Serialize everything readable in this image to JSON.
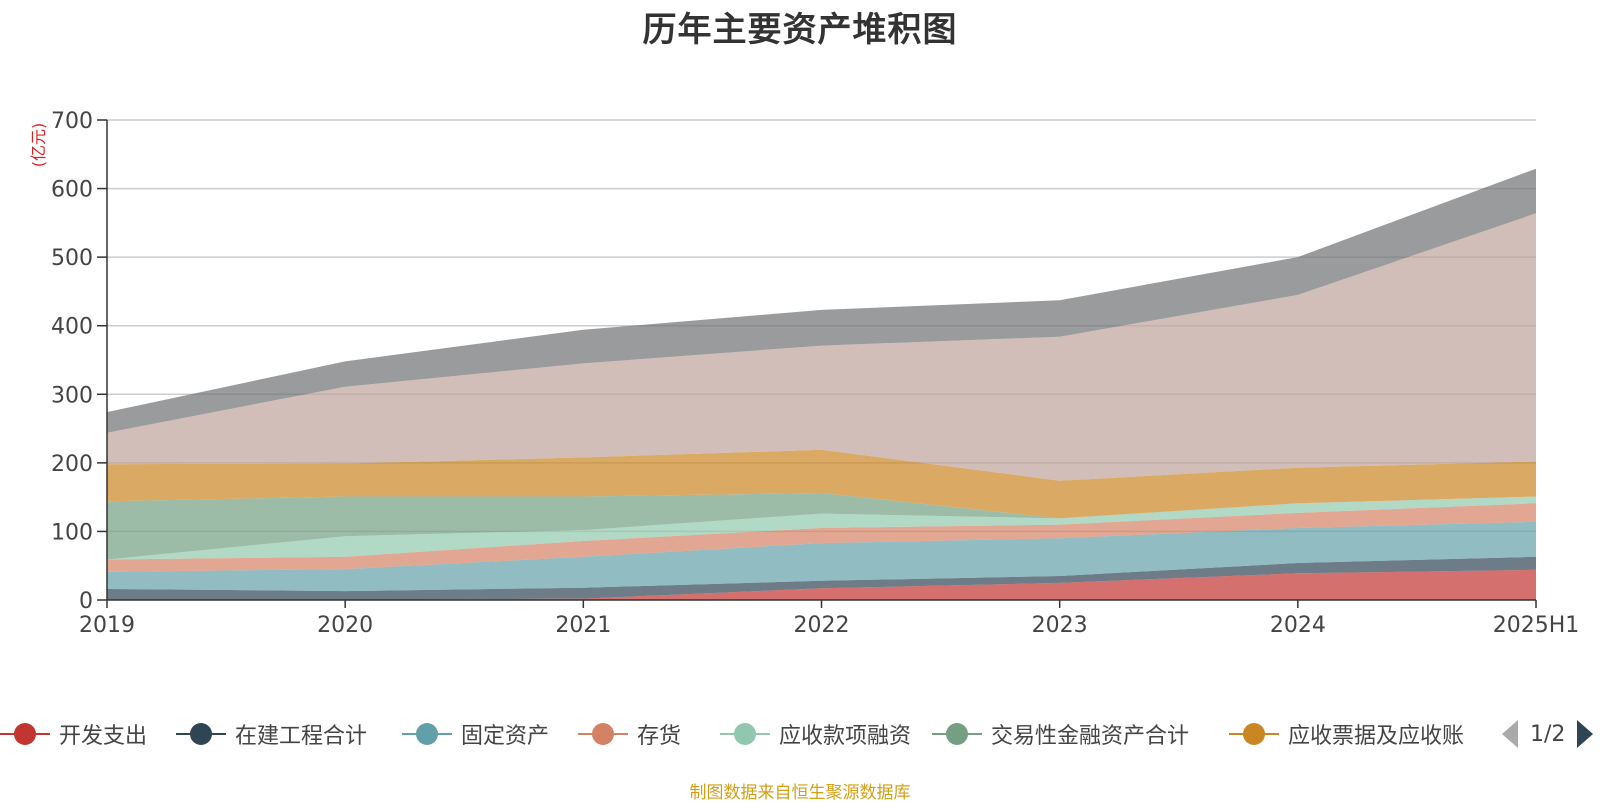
{
  "chart_data": {
    "type": "area",
    "stacked": true,
    "title": "历年主要资产堆积图",
    "ylabel": "(亿元)",
    "xlabel": "",
    "categories": [
      "2019",
      "2020",
      "2021",
      "2022",
      "2023",
      "2024",
      "2025H1"
    ],
    "ylim": [
      0,
      700
    ],
    "yticks": [
      0,
      100,
      200,
      300,
      400,
      500,
      600,
      700
    ],
    "grid": true,
    "legend_position": "bottom",
    "series": [
      {
        "name": "开发支出",
        "color": "#c23531",
        "values": [
          0,
          0,
          2,
          17,
          25,
          39,
          44
        ]
      },
      {
        "name": "在建工程合计",
        "color": "#2f4554",
        "values": [
          16,
          13,
          16,
          11,
          10,
          15,
          19
        ]
      },
      {
        "name": "固定资产",
        "color": "#61a0a8",
        "values": [
          25,
          32,
          45,
          55,
          55,
          51,
          51
        ]
      },
      {
        "name": "存货",
        "color": "#d48265",
        "values": [
          18,
          18,
          23,
          22,
          20,
          22,
          27
        ]
      },
      {
        "name": "应收款项融资",
        "color": "#91c7ae",
        "values": [
          0,
          30,
          16,
          21,
          9,
          14,
          10
        ]
      },
      {
        "name": "交易性金融资产合计",
        "color": "#749f83",
        "values": [
          85,
          58,
          49,
          30,
          0,
          0,
          0
        ]
      },
      {
        "name": "应收票据及应收账",
        "color": "#ca8622",
        "values": [
          54,
          48,
          57,
          63,
          55,
          52,
          51
        ]
      },
      {
        "values": [
          46,
          112,
          137,
          152,
          210,
          252,
          362
        ],
        "color": "#bda29a"
      },
      {
        "values": [
          30,
          37,
          49,
          52,
          53,
          55,
          65
        ],
        "color": "#6e7074"
      }
    ]
  },
  "legend": {
    "items": [
      {
        "name": "开发支出",
        "color": "#c23531"
      },
      {
        "name": "在建工程合计",
        "color": "#2f4554"
      },
      {
        "name": "固定资产",
        "color": "#61a0a8"
      },
      {
        "name": "存货",
        "color": "#d48265"
      },
      {
        "name": "应收款项融资",
        "color": "#91c7ae"
      },
      {
        "name": "交易性金融资产合计",
        "color": "#749f83"
      },
      {
        "name": "应收票据及应收账",
        "color": "#ca8622"
      }
    ],
    "page": "1/2"
  },
  "footer": {
    "source": "制图数据来自恒生聚源数据库"
  }
}
